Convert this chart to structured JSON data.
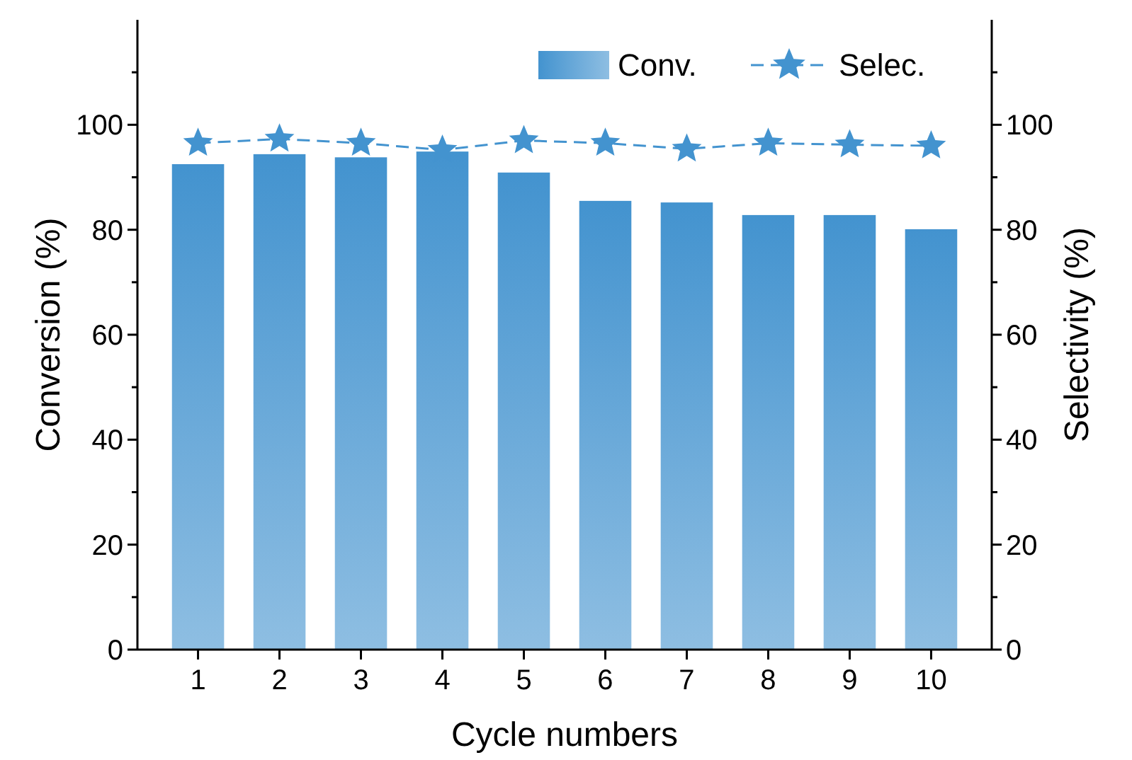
{
  "chart_data": {
    "type": "bar",
    "xlabel": "Cycle numbers",
    "ylabel": "Conversion (%)",
    "y2label": "Selectivity (%)",
    "categories": [
      "1",
      "2",
      "3",
      "4",
      "5",
      "6",
      "7",
      "8",
      "9",
      "10"
    ],
    "series": [
      {
        "name": "Conv.",
        "color": "#4393cf",
        "values": [
          92.5,
          94.4,
          93.8,
          94.9,
          90.9,
          85.5,
          85.2,
          82.8,
          82.8,
          80.1
        ]
      },
      {
        "name": "Selec.",
        "type": "line",
        "axis": "y2",
        "color": "#4393cf",
        "marker": "star",
        "line_style": "dashed",
        "values": [
          96.5,
          97.3,
          96.5,
          95.2,
          97.0,
          96.5,
          95.4,
          96.5,
          96.2,
          96.0
        ]
      }
    ],
    "ylim": [
      0,
      120
    ],
    "yticks": [
      0,
      {
        "value": 10,
        "label": null
      },
      20,
      {
        "value": 30,
        "label": null
      },
      40,
      {
        "value": 50,
        "label": null
      },
      60,
      {
        "value": 70,
        "label": null
      },
      80,
      {
        "value": 90,
        "label": null
      },
      100,
      {
        "value": 110,
        "label": null
      }
    ],
    "y2lim": [
      0,
      120
    ],
    "y2ticks": [
      0,
      {
        "value": 10,
        "label": null
      },
      20,
      {
        "value": 30,
        "label": null
      },
      40,
      {
        "value": 50,
        "label": null
      },
      60,
      {
        "value": 70,
        "label": null
      },
      80,
      {
        "value": 90,
        "label": null
      },
      100,
      {
        "value": 110,
        "label": null
      }
    ],
    "legend": "top right",
    "grid": false
  }
}
